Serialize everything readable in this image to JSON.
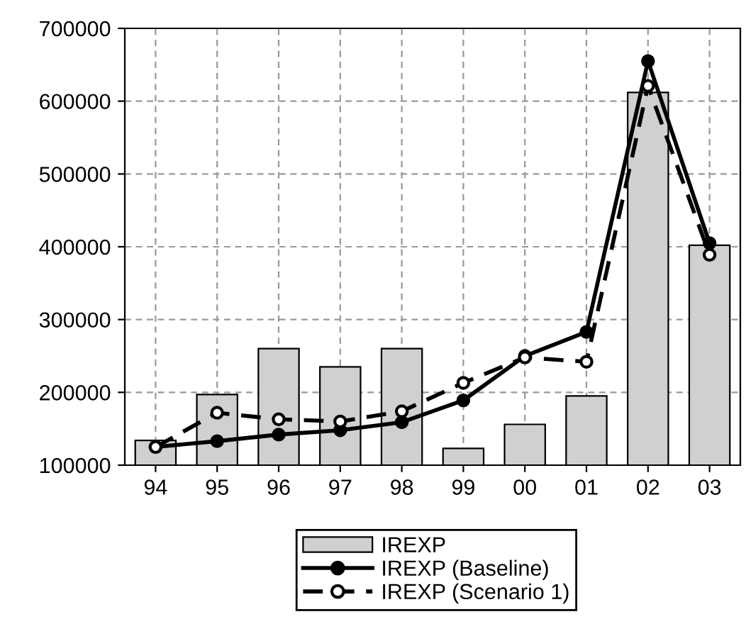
{
  "chart_data": {
    "type": "bar",
    "categories": [
      "94",
      "95",
      "96",
      "97",
      "98",
      "99",
      "00",
      "01",
      "02",
      "03"
    ],
    "series": [
      {
        "name": "IREXP",
        "color": "#d0d0d0",
        "values": [
          134000,
          197000,
          260000,
          235000,
          260000,
          123000,
          156000,
          195000,
          612000,
          402000
        ]
      },
      {
        "name": "IREXP (Baseline)",
        "type": "line",
        "color": "#000000",
        "marker": "circle",
        "line_style": "solid",
        "values": [
          125000,
          133000,
          142000,
          148000,
          159000,
          189000,
          250000,
          283000,
          655000,
          405000
        ]
      },
      {
        "name": "IREXP (Scenario 1)",
        "type": "line",
        "color": "#000000",
        "marker": "circle",
        "line_style": "dashed",
        "values": [
          125000,
          172000,
          163000,
          160000,
          174000,
          213000,
          248000,
          242000,
          621000,
          389000
        ]
      }
    ],
    "ylim": [
      100000,
      700000
    ],
    "yticks": [
      100000,
      200000,
      300000,
      400000,
      500000,
      600000,
      700000
    ],
    "grid": true,
    "legend": "bottom"
  }
}
